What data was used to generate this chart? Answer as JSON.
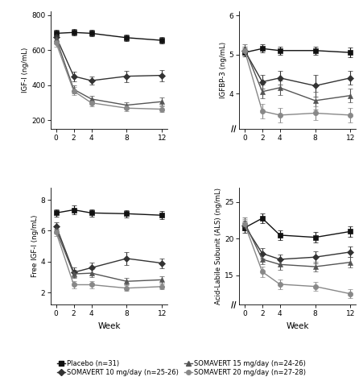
{
  "weeks": [
    0,
    2,
    4,
    8,
    12
  ],
  "igf1": {
    "placebo": {
      "y": [
        695,
        700,
        695,
        670,
        655
      ],
      "err": [
        18,
        18,
        18,
        18,
        18
      ]
    },
    "soma10": {
      "y": [
        675,
        450,
        425,
        450,
        455
      ],
      "err": [
        22,
        28,
        22,
        32,
        32
      ]
    },
    "soma15": {
      "y": [
        665,
        375,
        320,
        285,
        305
      ],
      "err": [
        22,
        22,
        18,
        18,
        22
      ]
    },
    "soma20": {
      "y": [
        640,
        365,
        298,
        268,
        262
      ],
      "err": [
        22,
        22,
        18,
        18,
        18
      ]
    },
    "ylabel": "IGF-I (ng/mL)",
    "ylim": [
      150,
      820
    ],
    "yticks": [
      200,
      400,
      600,
      800
    ],
    "broken": false
  },
  "igfbp3": {
    "placebo": {
      "y": [
        5.05,
        5.15,
        5.1,
        5.1,
        5.05
      ],
      "err": [
        0.1,
        0.1,
        0.1,
        0.1,
        0.12
      ]
    },
    "soma10": {
      "y": [
        5.1,
        4.3,
        4.4,
        4.2,
        4.4
      ],
      "err": [
        0.1,
        0.18,
        0.18,
        0.28,
        0.18
      ]
    },
    "soma15": {
      "y": [
        5.15,
        4.05,
        4.15,
        3.82,
        3.95
      ],
      "err": [
        0.1,
        0.18,
        0.18,
        0.22,
        0.18
      ]
    },
    "soma20": {
      "y": [
        5.1,
        3.55,
        3.45,
        3.5,
        3.45
      ],
      "err": [
        0.1,
        0.18,
        0.18,
        0.18,
        0.18
      ]
    },
    "ylabel": "IGFBP-3 (ng/mL)",
    "ylim": [
      3.1,
      6.1
    ],
    "yticks": [
      4.0,
      5.0,
      6.0
    ],
    "broken": true
  },
  "free_igf1": {
    "placebo": {
      "y": [
        7.15,
        7.35,
        7.15,
        7.1,
        7.0
      ],
      "err": [
        0.25,
        0.28,
        0.25,
        0.25,
        0.25
      ]
    },
    "soma10": {
      "y": [
        6.3,
        3.3,
        3.6,
        4.2,
        3.9
      ],
      "err": [
        0.25,
        0.32,
        0.32,
        0.42,
        0.32
      ]
    },
    "soma15": {
      "y": [
        6.05,
        3.2,
        3.25,
        2.72,
        2.82
      ],
      "err": [
        0.25,
        0.28,
        0.28,
        0.22,
        0.22
      ]
    },
    "soma20": {
      "y": [
        5.9,
        2.5,
        2.5,
        2.28,
        2.38
      ],
      "err": [
        0.25,
        0.22,
        0.22,
        0.18,
        0.18
      ]
    },
    "ylabel": "Free IGF-I (ng/mL)",
    "ylim": [
      1.2,
      8.8
    ],
    "yticks": [
      2,
      4,
      6,
      8
    ],
    "broken": false
  },
  "als": {
    "placebo": {
      "y": [
        21.5,
        22.8,
        20.5,
        20.2,
        21.0
      ],
      "err": [
        0.7,
        0.7,
        0.7,
        0.7,
        0.7
      ]
    },
    "soma10": {
      "y": [
        21.8,
        18.0,
        17.2,
        17.5,
        18.2
      ],
      "err": [
        0.7,
        0.7,
        0.7,
        0.8,
        0.7
      ]
    },
    "soma15": {
      "y": [
        22.2,
        17.2,
        16.5,
        16.2,
        16.8
      ],
      "err": [
        0.7,
        0.7,
        0.7,
        0.7,
        0.7
      ]
    },
    "soma20": {
      "y": [
        22.0,
        15.5,
        13.8,
        13.5,
        12.5
      ],
      "err": [
        0.7,
        0.7,
        0.7,
        0.6,
        0.6
      ]
    },
    "ylabel": "Acid-Labile Subunit (ALS) (ng/mL)",
    "ylim": [
      11,
      27
    ],
    "yticks": [
      15,
      20,
      25
    ],
    "broken": true
  },
  "series_styles": {
    "placebo": {
      "marker": "s",
      "color": "#111111",
      "linestyle": "-",
      "mfc": "#111111"
    },
    "soma10": {
      "marker": "D",
      "color": "#333333",
      "linestyle": "-",
      "mfc": "#333333"
    },
    "soma15": {
      "marker": "^",
      "color": "#555555",
      "linestyle": "-",
      "mfc": "#555555"
    },
    "soma20": {
      "marker": "o",
      "color": "#888888",
      "linestyle": "-",
      "mfc": "#888888"
    }
  },
  "legend": [
    {
      "label": "Placebo (n=31)",
      "marker": "s",
      "color": "#111111"
    },
    {
      "label": "SOMAVERT 10 mg/day (n=25-26)",
      "marker": "D",
      "color": "#333333"
    },
    {
      "label": "SOMAVERT 15 mg/day (n=24-26)",
      "marker": "^",
      "color": "#555555"
    },
    {
      "label": "SOMAVERT 20 mg/day (n=27-28)",
      "marker": "o",
      "color": "#888888"
    }
  ],
  "xlabel": "Week",
  "xticks": [
    0,
    2,
    4,
    8,
    12
  ],
  "background_color": "#ffffff",
  "linewidth": 1.0,
  "markersize": 4.5,
  "capsize": 2.5,
  "elinewidth": 0.8
}
